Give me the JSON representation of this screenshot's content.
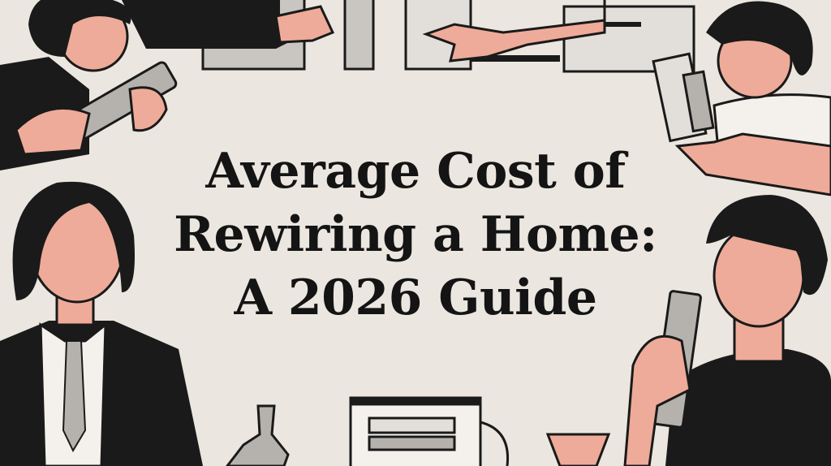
{
  "hero": {
    "title_lines": [
      "Average Cost of",
      "Rewiring a Home:",
      "A 2026 Guide"
    ]
  },
  "colors": {
    "background": "#ebe6df",
    "ink": "#141414",
    "skin": "#eeab99",
    "gray": "#b5b2ad"
  }
}
